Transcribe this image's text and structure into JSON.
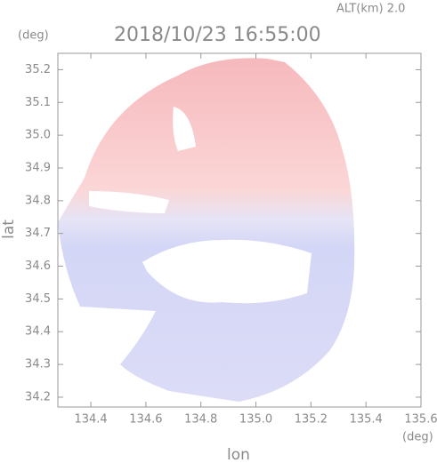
{
  "chart_data": {
    "type": "field",
    "title": "2018/10/23 16:55:00",
    "subtitle": "ALT(km) 2.0",
    "x_label": "lon",
    "y_label": "lat",
    "x_unit": "(deg)",
    "y_unit": "(deg)",
    "xlim": [
      134.28,
      135.6
    ],
    "ylim": [
      34.17,
      35.25
    ],
    "xticks": [
      134.4,
      134.6,
      134.8,
      {
        "value": 135,
        "label": "135.0"
      },
      135.2,
      135.4,
      135.6
    ],
    "yticks": [
      34.2,
      34.3,
      34.4,
      34.5,
      34.6,
      34.7,
      34.8,
      34.9,
      {
        "value": 35,
        "label": "35.0"
      },
      35.1,
      35.2
    ]
  }
}
